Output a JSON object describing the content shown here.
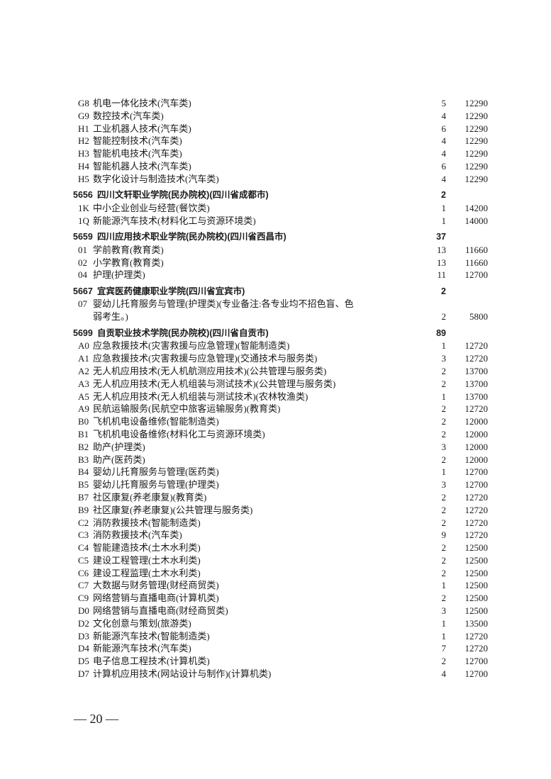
{
  "rows": [
    {
      "type": "item",
      "code": "G8",
      "name": "机电一体化技术(汽车类)",
      "count": "5",
      "fee": "12290"
    },
    {
      "type": "item",
      "code": "G9",
      "name": "数控技术(汽车类)",
      "count": "4",
      "fee": "12290"
    },
    {
      "type": "item",
      "code": "H1",
      "name": "工业机器人技术(汽车类)",
      "count": "6",
      "fee": "12290"
    },
    {
      "type": "item",
      "code": "H2",
      "name": "智能控制技术(汽车类)",
      "count": "4",
      "fee": "12290"
    },
    {
      "type": "item",
      "code": "H3",
      "name": "智能机电技术(汽车类)",
      "count": "4",
      "fee": "12290"
    },
    {
      "type": "item",
      "code": "H4",
      "name": "智能机器人技术(汽车类)",
      "count": "6",
      "fee": "12290"
    },
    {
      "type": "item",
      "code": "H5",
      "name": "数字化设计与制造技术(汽车类)",
      "count": "4",
      "fee": "12290"
    },
    {
      "type": "header",
      "code": "5656",
      "name": "四川文轩职业学院(民办院校)(四川省成都市)",
      "count": "2",
      "fee": ""
    },
    {
      "type": "item",
      "code": "1K",
      "name": "中小企业创业与经营(餐饮类)",
      "count": "1",
      "fee": "14200"
    },
    {
      "type": "item",
      "code": "1Q",
      "name": "新能源汽车技术(材料化工与资源环境类)",
      "count": "1",
      "fee": "14000"
    },
    {
      "type": "header",
      "code": "5659",
      "name": "四川应用技术职业学院(民办院校)(四川省西昌市)",
      "count": "37",
      "fee": ""
    },
    {
      "type": "item",
      "code": "01",
      "name": "学前教育(教育类)",
      "count": "13",
      "fee": "11660"
    },
    {
      "type": "item",
      "code": "02",
      "name": "小学教育(教育类)",
      "count": "13",
      "fee": "11660"
    },
    {
      "type": "item",
      "code": "04",
      "name": "护理(护理类)",
      "count": "11",
      "fee": "12700"
    },
    {
      "type": "header",
      "code": "5667",
      "name": "宜宾医药健康职业学院(四川省宜宾市)",
      "count": "2",
      "fee": ""
    },
    {
      "type": "item",
      "code": "07",
      "name": "婴幼儿托育服务与管理(护理类)(专业备注:各专业均不招色盲、色",
      "count": "",
      "fee": ""
    },
    {
      "type": "item",
      "code": "",
      "name": "弱考生。)",
      "count": "2",
      "fee": "5800"
    },
    {
      "type": "header",
      "code": "5699",
      "name": "自贡职业技术学院(民办院校)(四川省自贡市)",
      "count": "89",
      "fee": ""
    },
    {
      "type": "item",
      "code": "A0",
      "name": "应急救援技术(灾害救援与应急管理)(智能制造类)",
      "count": "1",
      "fee": "12720"
    },
    {
      "type": "item",
      "code": "A1",
      "name": "应急救援技术(灾害救援与应急管理)(交通技术与服务类)",
      "count": "3",
      "fee": "12720"
    },
    {
      "type": "item",
      "code": "A2",
      "name": "无人机应用技术(无人机航测应用技术)(公共管理与服务类)",
      "count": "2",
      "fee": "13700"
    },
    {
      "type": "item",
      "code": "A3",
      "name": "无人机应用技术(无人机组装与测试技术)(公共管理与服务类)",
      "count": "2",
      "fee": "13700"
    },
    {
      "type": "item",
      "code": "A5",
      "name": "无人机应用技术(无人机组装与测试技术)(农林牧渔类)",
      "count": "1",
      "fee": "13700"
    },
    {
      "type": "item",
      "code": "A9",
      "name": "民航运输服务(民航空中旅客运输服务)(教育类)",
      "count": "2",
      "fee": "12720"
    },
    {
      "type": "item",
      "code": "B0",
      "name": "飞机机电设备维修(智能制造类)",
      "count": "2",
      "fee": "12000"
    },
    {
      "type": "item",
      "code": "B1",
      "name": "飞机机电设备维修(材料化工与资源环境类)",
      "count": "2",
      "fee": "12000"
    },
    {
      "type": "item",
      "code": "B2",
      "name": "助产(护理类)",
      "count": "3",
      "fee": "12000"
    },
    {
      "type": "item",
      "code": "B3",
      "name": "助产(医药类)",
      "count": "2",
      "fee": "12000"
    },
    {
      "type": "item",
      "code": "B4",
      "name": "婴幼儿托育服务与管理(医药类)",
      "count": "1",
      "fee": "12700"
    },
    {
      "type": "item",
      "code": "B5",
      "name": "婴幼儿托育服务与管理(护理类)",
      "count": "3",
      "fee": "12700"
    },
    {
      "type": "item",
      "code": "B7",
      "name": "社区康复(养老康复)(教育类)",
      "count": "2",
      "fee": "12720"
    },
    {
      "type": "item",
      "code": "B9",
      "name": "社区康复(养老康复)(公共管理与服务类)",
      "count": "2",
      "fee": "12720"
    },
    {
      "type": "item",
      "code": "C2",
      "name": "消防救援技术(智能制造类)",
      "count": "2",
      "fee": "12720"
    },
    {
      "type": "item",
      "code": "C3",
      "name": "消防救援技术(汽车类)",
      "count": "9",
      "fee": "12720"
    },
    {
      "type": "item",
      "code": "C4",
      "name": "智能建造技术(土木水利类)",
      "count": "2",
      "fee": "12500"
    },
    {
      "type": "item",
      "code": "C5",
      "name": "建设工程管理(土木水利类)",
      "count": "2",
      "fee": "12500"
    },
    {
      "type": "item",
      "code": "C6",
      "name": "建设工程监理(土木水利类)",
      "count": "2",
      "fee": "12500"
    },
    {
      "type": "item",
      "code": "C7",
      "name": "大数据与财务管理(财经商贸类)",
      "count": "1",
      "fee": "12500"
    },
    {
      "type": "item",
      "code": "C9",
      "name": "网络营销与直播电商(计算机类)",
      "count": "2",
      "fee": "12500"
    },
    {
      "type": "item",
      "code": "D0",
      "name": "网络营销与直播电商(财经商贸类)",
      "count": "3",
      "fee": "12500"
    },
    {
      "type": "item",
      "code": "D2",
      "name": "文化创意与策划(旅游类)",
      "count": "1",
      "fee": "13500"
    },
    {
      "type": "item",
      "code": "D3",
      "name": "新能源汽车技术(智能制造类)",
      "count": "1",
      "fee": "12720"
    },
    {
      "type": "item",
      "code": "D4",
      "name": "新能源汽车技术(汽车类)",
      "count": "7",
      "fee": "12720"
    },
    {
      "type": "item",
      "code": "D5",
      "name": "电子信息工程技术(计算机类)",
      "count": "2",
      "fee": "12700"
    },
    {
      "type": "item",
      "code": "D7",
      "name": "计算机应用技术(网站设计与制作)(计算机类)",
      "count": "4",
      "fee": "12700"
    }
  ],
  "footer": {
    "page_number": "— 20 —"
  }
}
